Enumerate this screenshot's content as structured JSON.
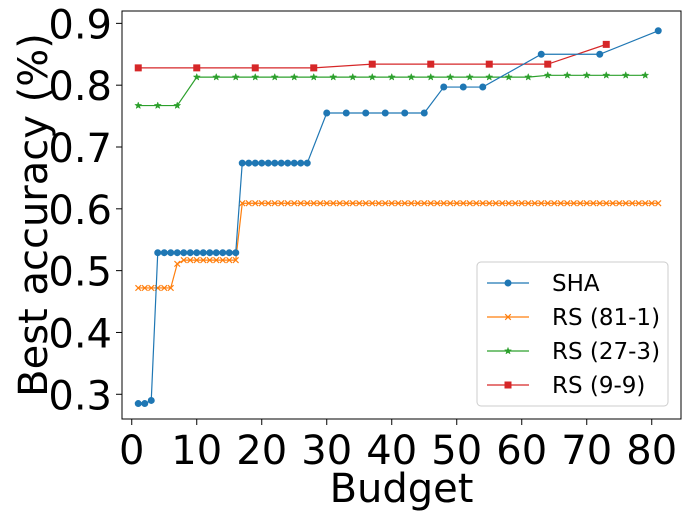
{
  "chart_data": {
    "type": "line",
    "title": "",
    "xlabel": "Budget",
    "ylabel": "Best accuracy (%)",
    "xlim": [
      -1.5,
      84.5
    ],
    "ylim": [
      0.26,
      0.92
    ],
    "xticks": [
      0,
      10,
      20,
      30,
      40,
      50,
      60,
      70,
      80
    ],
    "yticks": [
      0.3,
      0.4,
      0.5,
      0.6,
      0.7,
      0.8,
      0.9
    ],
    "grid": false,
    "legend_position": "bottom-right",
    "series": [
      {
        "name": "SHA",
        "color": "#1f77b4",
        "marker": "circle",
        "x": [
          1,
          2,
          3,
          4,
          5,
          6,
          7,
          8,
          9,
          10,
          11,
          12,
          13,
          14,
          15,
          16,
          17,
          18,
          19,
          20,
          21,
          22,
          23,
          24,
          25,
          26,
          27,
          30,
          33,
          36,
          39,
          42,
          45,
          48,
          51,
          54,
          63,
          72,
          81
        ],
        "y": [
          0.285,
          0.285,
          0.29,
          0.529,
          0.529,
          0.529,
          0.529,
          0.529,
          0.529,
          0.529,
          0.529,
          0.529,
          0.529,
          0.529,
          0.529,
          0.529,
          0.674,
          0.674,
          0.674,
          0.674,
          0.674,
          0.674,
          0.674,
          0.674,
          0.674,
          0.674,
          0.674,
          0.755,
          0.755,
          0.755,
          0.755,
          0.755,
          0.755,
          0.797,
          0.797,
          0.797,
          0.85,
          0.85,
          0.888
        ]
      },
      {
        "name": "RS (81-1)",
        "color": "#ff7f0e",
        "marker": "x",
        "x": [
          1,
          2,
          3,
          4,
          5,
          6,
          7,
          8,
          9,
          10,
          11,
          12,
          13,
          14,
          15,
          16,
          17,
          18,
          19,
          20,
          21,
          22,
          23,
          24,
          25,
          26,
          27,
          28,
          29,
          30,
          31,
          32,
          33,
          34,
          35,
          36,
          37,
          38,
          39,
          40,
          41,
          42,
          43,
          44,
          45,
          46,
          47,
          48,
          49,
          50,
          51,
          52,
          53,
          54,
          55,
          56,
          57,
          58,
          59,
          60,
          61,
          62,
          63,
          64,
          65,
          66,
          67,
          68,
          69,
          70,
          71,
          72,
          73,
          74,
          75,
          76,
          77,
          78,
          79,
          80,
          81
        ],
        "y": [
          0.472,
          0.472,
          0.472,
          0.472,
          0.472,
          0.472,
          0.511,
          0.517,
          0.517,
          0.517,
          0.517,
          0.517,
          0.517,
          0.517,
          0.517,
          0.517,
          0.609,
          0.609,
          0.609,
          0.609,
          0.609,
          0.609,
          0.609,
          0.609,
          0.609,
          0.609,
          0.609,
          0.609,
          0.609,
          0.609,
          0.609,
          0.609,
          0.609,
          0.609,
          0.609,
          0.609,
          0.609,
          0.609,
          0.609,
          0.609,
          0.609,
          0.609,
          0.609,
          0.609,
          0.609,
          0.609,
          0.609,
          0.609,
          0.609,
          0.609,
          0.609,
          0.609,
          0.609,
          0.609,
          0.609,
          0.609,
          0.609,
          0.609,
          0.609,
          0.609,
          0.609,
          0.609,
          0.609,
          0.609,
          0.609,
          0.609,
          0.609,
          0.609,
          0.609,
          0.609,
          0.609,
          0.609,
          0.609,
          0.609,
          0.609,
          0.609,
          0.609,
          0.609,
          0.609,
          0.609,
          0.609
        ]
      },
      {
        "name": "RS (27-3)",
        "color": "#2ca02c",
        "marker": "star",
        "x": [
          1,
          4,
          7,
          10,
          13,
          16,
          19,
          22,
          25,
          28,
          31,
          34,
          37,
          40,
          43,
          46,
          49,
          52,
          55,
          58,
          61,
          64,
          67,
          70,
          73,
          76,
          79
        ],
        "y": [
          0.767,
          0.767,
          0.767,
          0.813,
          0.813,
          0.813,
          0.813,
          0.813,
          0.813,
          0.813,
          0.813,
          0.813,
          0.813,
          0.813,
          0.813,
          0.813,
          0.813,
          0.813,
          0.813,
          0.813,
          0.813,
          0.816,
          0.816,
          0.816,
          0.816,
          0.816,
          0.816
        ]
      },
      {
        "name": "RS (9-9)",
        "color": "#d62728",
        "marker": "square",
        "x": [
          1,
          10,
          19,
          28,
          37,
          46,
          55,
          64,
          73
        ],
        "y": [
          0.828,
          0.828,
          0.828,
          0.828,
          0.834,
          0.834,
          0.834,
          0.834,
          0.866
        ]
      }
    ]
  }
}
